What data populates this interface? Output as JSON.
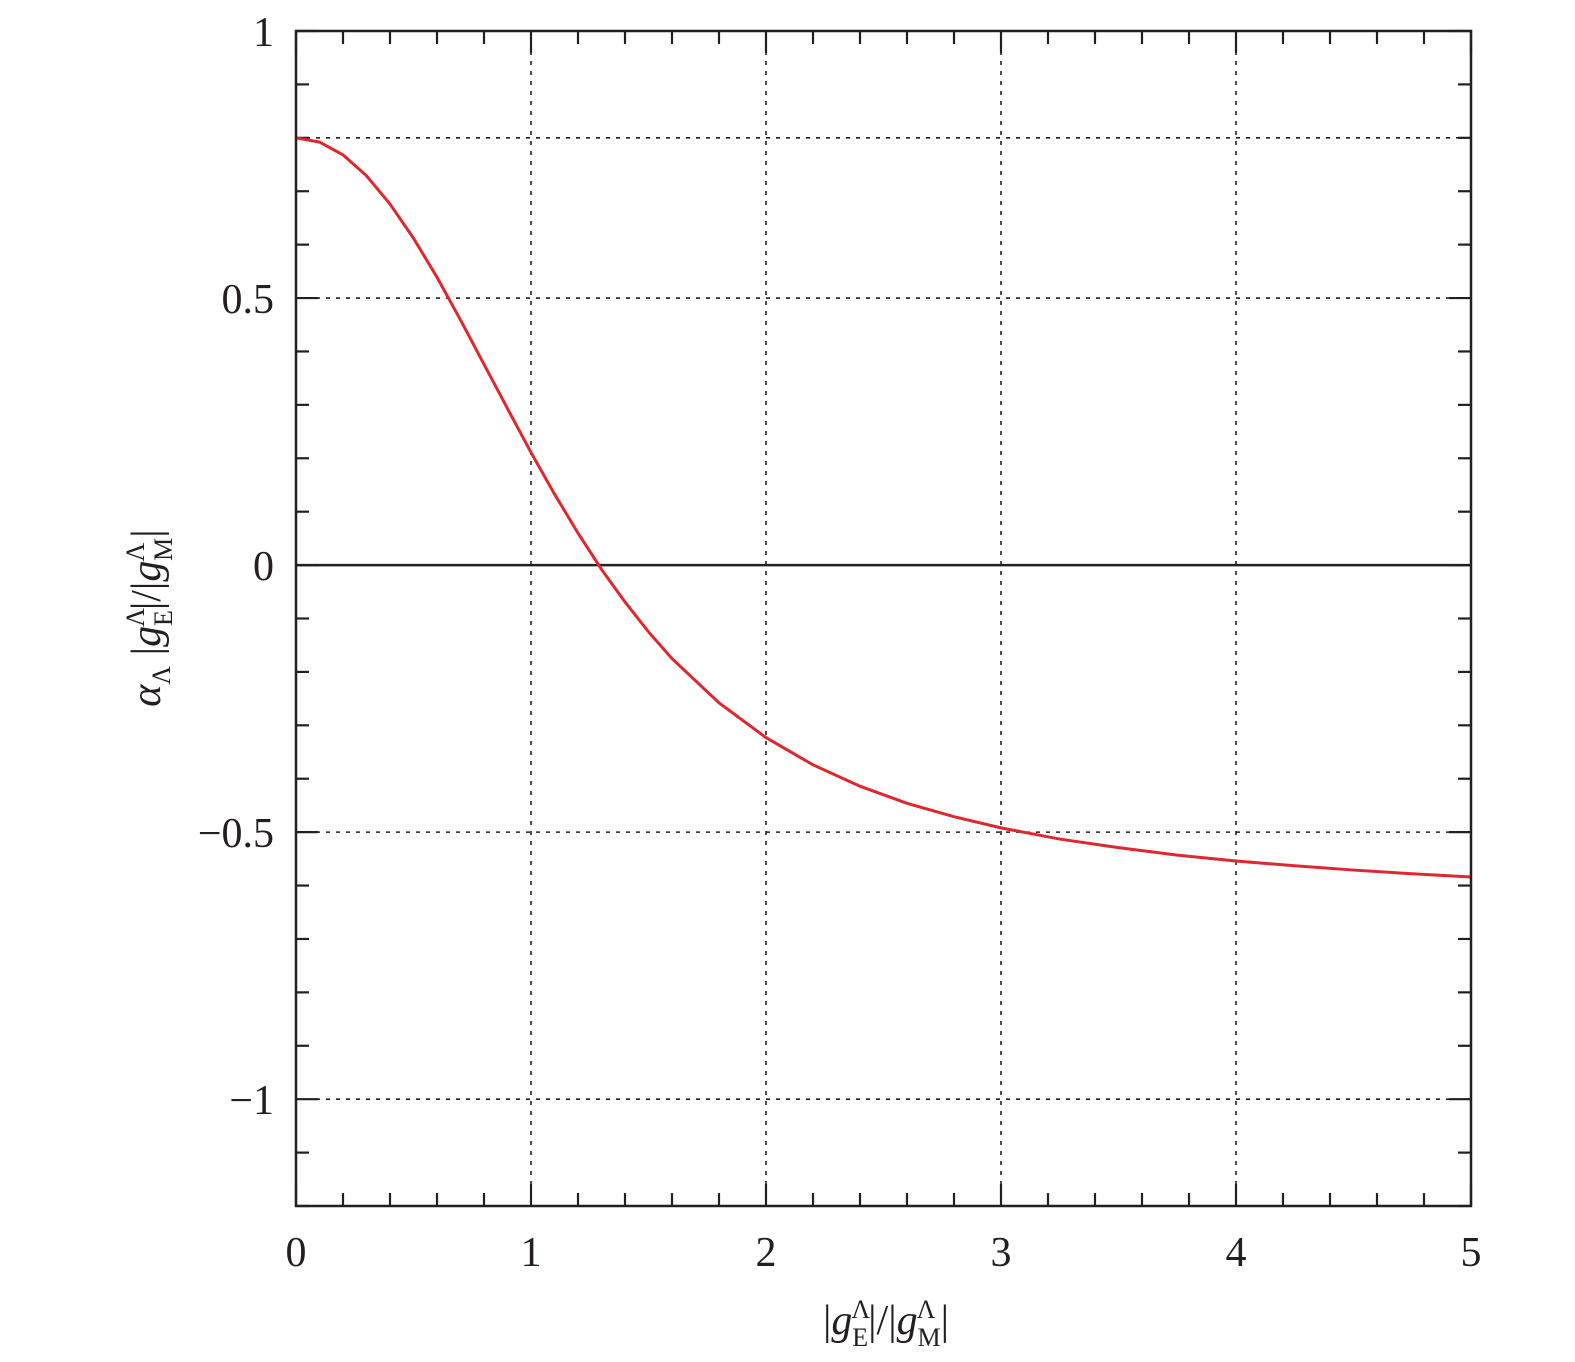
{
  "chart_data": {
    "type": "line",
    "title": "",
    "xlabel": "|gEΛ|/|gMΛ|",
    "ylabel": "αΛ |gEΛ|/|gMΛ|",
    "xlim": [
      0,
      5
    ],
    "ylim": [
      -1.2,
      1
    ],
    "x_ticks": [
      "0",
      "1",
      "2",
      "3",
      "4",
      "5"
    ],
    "y_ticks": [
      {
        "value": 1,
        "label": "1"
      },
      {
        "value": 0.5,
        "label": "0.5"
      },
      {
        "value": 0,
        "label": "0"
      },
      {
        "value": -0.5,
        "label": "−0.5"
      },
      {
        "value": -1,
        "label": "−1"
      }
    ],
    "grid": "dotted at major ticks",
    "legend": "none",
    "colors": {
      "series": "#e0262e",
      "axis": "#231f20",
      "grid": "#231f20"
    },
    "series": [
      {
        "x": [
          0,
          0.1,
          0.2,
          0.3,
          0.4,
          0.5,
          0.6,
          0.7,
          0.8,
          0.9,
          1.0,
          1.1,
          1.2,
          1.3,
          1.4,
          1.5,
          1.6,
          1.8,
          2.0,
          2.2,
          2.4,
          2.6,
          2.8,
          3.0,
          3.25,
          3.5,
          3.75,
          4.0,
          4.25,
          4.5,
          4.75,
          5.0
        ],
        "y": [
          0.8,
          0.792,
          0.768,
          0.729,
          0.676,
          0.612,
          0.539,
          0.459,
          0.376,
          0.293,
          0.211,
          0.133,
          0.06,
          -0.008,
          -0.069,
          -0.125,
          -0.175,
          -0.258,
          -0.323,
          -0.374,
          -0.414,
          -0.446,
          -0.471,
          -0.492,
          -0.513,
          -0.529,
          -0.543,
          -0.554,
          -0.563,
          -0.571,
          -0.578,
          -0.584
        ]
      }
    ]
  }
}
